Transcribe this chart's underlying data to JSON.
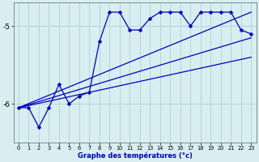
{
  "xlabel": "Graphe des températures (°c)",
  "bg_color": "#d8eef0",
  "grid_color": "#b0d8dc",
  "line_color": "#0000bb",
  "xlim": [
    -0.5,
    23.5
  ],
  "ylim": [
    -6.5,
    -4.7
  ],
  "yticks": [
    -6,
    -5
  ],
  "xticks": [
    0,
    1,
    2,
    3,
    4,
    5,
    6,
    7,
    8,
    9,
    10,
    11,
    12,
    13,
    14,
    15,
    16,
    17,
    18,
    19,
    20,
    21,
    22,
    23
  ],
  "series": [
    {
      "x": [
        0,
        1,
        2,
        3,
        4,
        5,
        6,
        7,
        8,
        9,
        10,
        11,
        12,
        13,
        14,
        15,
        16,
        17,
        18,
        19,
        20,
        21,
        22,
        23
      ],
      "y": [
        -6.05,
        -6.05,
        -6.3,
        -6.05,
        -5.75,
        -6.0,
        -5.9,
        -5.85,
        -5.2,
        -4.82,
        -4.82,
        -5.05,
        -5.05,
        -4.9,
        -4.82,
        -4.82,
        -4.82,
        -5.0,
        -4.82,
        -4.82,
        -4.82,
        -4.82,
        -5.05,
        -5.1
      ],
      "marker": "D",
      "markersize": 2.5,
      "linewidth": 0.9
    },
    {
      "x": [
        0,
        23
      ],
      "y": [
        -6.05,
        -4.82
      ],
      "marker": null,
      "markersize": 0,
      "linewidth": 0.9
    },
    {
      "x": [
        0,
        23
      ],
      "y": [
        -6.05,
        -5.15
      ],
      "marker": null,
      "markersize": 0,
      "linewidth": 0.9
    },
    {
      "x": [
        0,
        23
      ],
      "y": [
        -6.05,
        -5.4
      ],
      "marker": null,
      "markersize": 0,
      "linewidth": 0.9
    }
  ]
}
